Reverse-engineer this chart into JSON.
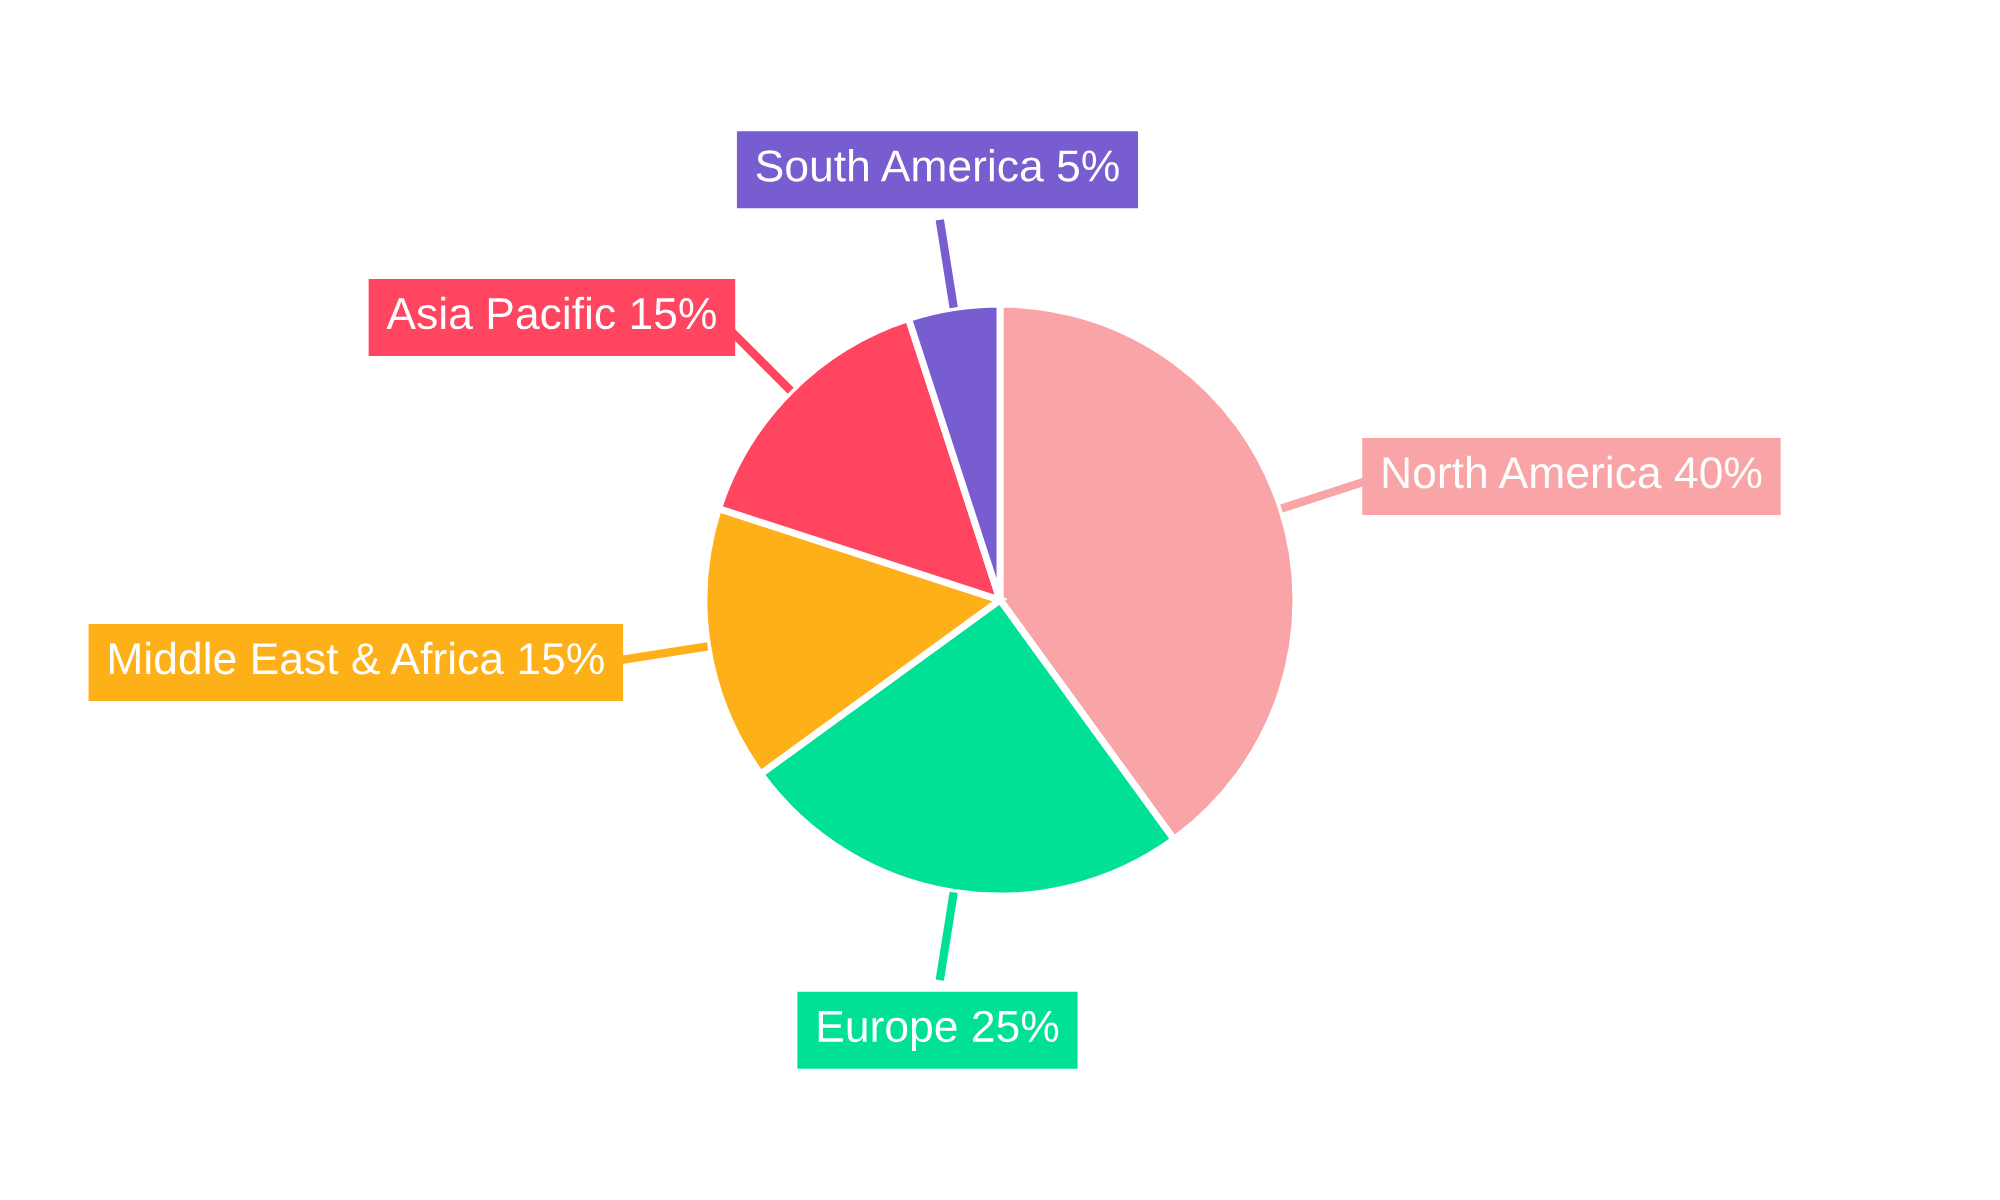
{
  "chart_data": {
    "type": "pie",
    "categories": [
      "North America",
      "Europe",
      "Middle East & Africa",
      "Asia Pacific",
      "South America"
    ],
    "values": [
      40,
      25,
      15,
      15,
      5
    ],
    "colors": [
      "#f9a5a7",
      "#00e096",
      "#feb019",
      "#ff4560",
      "#775dd0"
    ],
    "value_labels": [
      "40%",
      "25%",
      "15%",
      "15%",
      "5%"
    ]
  }
}
